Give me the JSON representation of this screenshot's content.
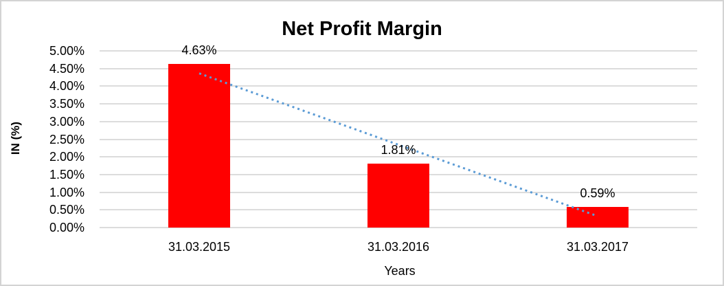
{
  "chart": {
    "colors": {
      "bar": "#ff0000",
      "trendline": "#5b9bd5",
      "gridline": "#dcdcdc",
      "text": "#000000",
      "border": "#d3d3d3",
      "background": "#ffffff"
    }
  },
  "chart_data": {
    "type": "bar",
    "title": "Net Profit Margin",
    "xlabel": "Years",
    "ylabel": "IN (%)",
    "categories": [
      "31.03.2015",
      "31.03.2016",
      "31.03.2017"
    ],
    "values": [
      4.63,
      1.81,
      0.59
    ],
    "data_labels": [
      "4.63%",
      "1.81%",
      "0.59%"
    ],
    "y_ticks": [
      "5.00%",
      "4.50%",
      "4.00%",
      "3.50%",
      "3.00%",
      "2.50%",
      "2.00%",
      "1.50%",
      "1.00%",
      "0.50%",
      "0.00%"
    ],
    "ylim": [
      0,
      5
    ],
    "grid": true,
    "legend": "none",
    "bar_color": "#ff0000",
    "trendline": {
      "type": "linear",
      "style": "dotted",
      "color": "#5b9bd5",
      "start_value": 4.36,
      "end_value": 0.32
    }
  }
}
